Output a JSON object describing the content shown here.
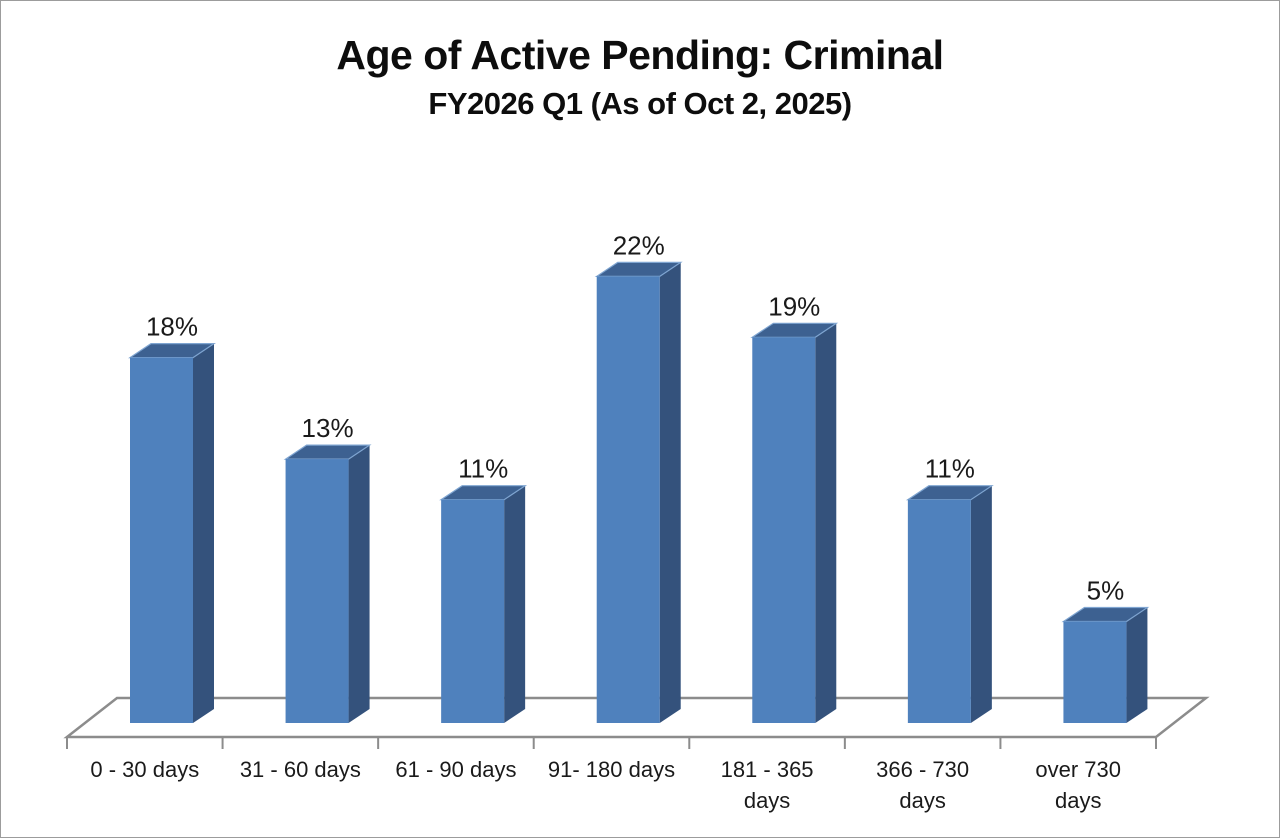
{
  "chart_data": {
    "type": "bar",
    "style": "3d-column",
    "title": "Age of Active Pending: Criminal",
    "subtitle": "FY2026 Q1 (As of Oct 2, 2025)",
    "categories": [
      "0 - 30 days",
      "31 - 60 days",
      "61 - 90 days",
      "91- 180 days",
      "181 - 365 days",
      "366 - 730 days",
      "over 730 days"
    ],
    "category_label_lines": [
      [
        "0 - 30 days"
      ],
      [
        "31 - 60 days"
      ],
      [
        "61 - 90 days"
      ],
      [
        "91- 180 days"
      ],
      [
        "181 - 365",
        "days"
      ],
      [
        "366 - 730",
        "days"
      ],
      [
        "over 730",
        "days"
      ]
    ],
    "values": [
      18,
      13,
      11,
      22,
      19,
      11,
      5
    ],
    "data_labels": [
      "18%",
      "13%",
      "11%",
      "22%",
      "19%",
      "11%",
      "5%"
    ],
    "unit": "percent",
    "ylim": [
      0,
      25
    ],
    "grid": false,
    "legend": "none",
    "y_axis_visible": false,
    "colors": {
      "bar_front": "#4F81BD",
      "bar_side": "#34527C",
      "bar_top": "#3D6191",
      "bar_edge_highlight": "#7FA5D1",
      "axis_line": "#8C8C8C",
      "label_text": "#1A1A1A"
    }
  }
}
